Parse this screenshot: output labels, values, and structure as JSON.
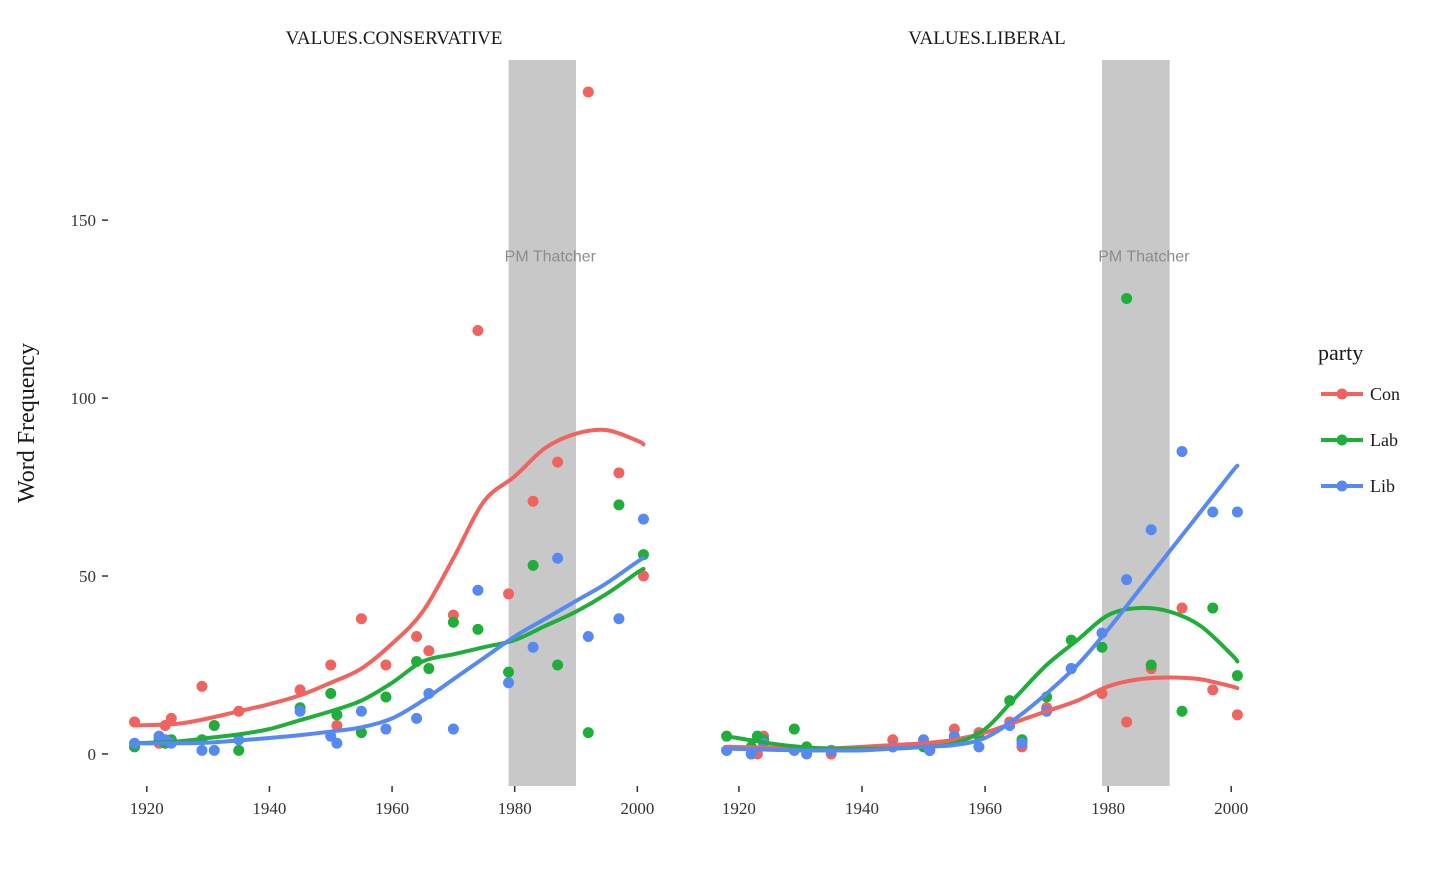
{
  "chart_data": {
    "type": "scatter",
    "ylabel": "Word Frequency",
    "xlim": [
      1914,
      2005
    ],
    "ylim": [
      -9,
      195
    ],
    "x_ticks": [
      1920,
      1940,
      1960,
      1980,
      2000
    ],
    "y_ticks": [
      0,
      50,
      100,
      150
    ],
    "grid": false,
    "legend": {
      "title": "party",
      "placement": "right"
    },
    "party_colors": {
      "Con": "#F0635E",
      "Lab": "#20AE3A",
      "Lib": "#5689F4"
    },
    "shaded_period": {
      "label": "PM Thatcher",
      "start": 1979,
      "end": 1990,
      "label_y": 140,
      "color": "#c8c8c8"
    },
    "panels": [
      {
        "title": "VALUES.CONSERVATIVE",
        "series": [
          {
            "name": "Con",
            "points": [
              [
                1918,
                9
              ],
              [
                1922,
                3
              ],
              [
                1923,
                8
              ],
              [
                1924,
                10
              ],
              [
                1929,
                19
              ],
              [
                1935,
                12
              ],
              [
                1945,
                18
              ],
              [
                1950,
                25
              ],
              [
                1951,
                8
              ],
              [
                1955,
                38
              ],
              [
                1959,
                25
              ],
              [
                1964,
                33
              ],
              [
                1966,
                29
              ],
              [
                1970,
                39
              ],
              [
                1974,
                119
              ],
              [
                1979,
                45
              ],
              [
                1983,
                71
              ],
              [
                1987,
                82
              ],
              [
                1992,
                186
              ],
              [
                1997,
                79
              ],
              [
                2001,
                50
              ]
            ],
            "smooth": [
              [
                1918,
                8
              ],
              [
                1925,
                8.5
              ],
              [
                1930,
                10
              ],
              [
                1935,
                12
              ],
              [
                1940,
                14
              ],
              [
                1945,
                16.5
              ],
              [
                1950,
                20
              ],
              [
                1955,
                24
              ],
              [
                1960,
                31
              ],
              [
                1965,
                40
              ],
              [
                1970,
                55
              ],
              [
                1975,
                71
              ],
              [
                1980,
                78
              ],
              [
                1985,
                86
              ],
              [
                1990,
                90
              ],
              [
                1995,
                91
              ],
              [
                2000,
                88
              ],
              [
                2001,
                87
              ]
            ]
          },
          {
            "name": "Lab",
            "points": [
              [
                1918,
                2
              ],
              [
                1922,
                4
              ],
              [
                1923,
                3
              ],
              [
                1924,
                4
              ],
              [
                1929,
                4
              ],
              [
                1931,
                8
              ],
              [
                1935,
                1
              ],
              [
                1945,
                13
              ],
              [
                1950,
                17
              ],
              [
                1951,
                11
              ],
              [
                1955,
                6
              ],
              [
                1959,
                16
              ],
              [
                1964,
                26
              ],
              [
                1966,
                24
              ],
              [
                1970,
                37
              ],
              [
                1974,
                35
              ],
              [
                1979,
                23
              ],
              [
                1983,
                53
              ],
              [
                1987,
                25
              ],
              [
                1992,
                6
              ],
              [
                1997,
                70
              ],
              [
                2001,
                56
              ]
            ],
            "smooth": [
              [
                1918,
                3
              ],
              [
                1925,
                3.5
              ],
              [
                1930,
                4.5
              ],
              [
                1935,
                5.5
              ],
              [
                1940,
                7
              ],
              [
                1945,
                9.5
              ],
              [
                1950,
                12
              ],
              [
                1955,
                15
              ],
              [
                1960,
                20
              ],
              [
                1965,
                26
              ],
              [
                1970,
                28
              ],
              [
                1975,
                30
              ],
              [
                1980,
                32
              ],
              [
                1985,
                36
              ],
              [
                1990,
                40
              ],
              [
                1995,
                45
              ],
              [
                2000,
                51
              ],
              [
                2001,
                52
              ]
            ]
          },
          {
            "name": "Lib",
            "points": [
              [
                1918,
                3
              ],
              [
                1922,
                5
              ],
              [
                1923,
                4
              ],
              [
                1924,
                3
              ],
              [
                1929,
                1
              ],
              [
                1931,
                1
              ],
              [
                1935,
                4
              ],
              [
                1945,
                12
              ],
              [
                1950,
                5
              ],
              [
                1951,
                3
              ],
              [
                1955,
                12
              ],
              [
                1959,
                7
              ],
              [
                1964,
                10
              ],
              [
                1966,
                17
              ],
              [
                1970,
                7
              ],
              [
                1974,
                46
              ],
              [
                1979,
                20
              ],
              [
                1983,
                30
              ],
              [
                1987,
                55
              ],
              [
                1992,
                33
              ],
              [
                1997,
                38
              ],
              [
                2001,
                66
              ]
            ],
            "smooth": [
              [
                1918,
                3
              ],
              [
                1925,
                3
              ],
              [
                1930,
                3.2
              ],
              [
                1935,
                3.8
              ],
              [
                1940,
                4.5
              ],
              [
                1945,
                5.3
              ],
              [
                1950,
                6.3
              ],
              [
                1955,
                7.5
              ],
              [
                1960,
                10
              ],
              [
                1965,
                15
              ],
              [
                1970,
                21
              ],
              [
                1975,
                27
              ],
              [
                1980,
                33
              ],
              [
                1985,
                38
              ],
              [
                1990,
                43
              ],
              [
                1995,
                48
              ],
              [
                2000,
                54
              ],
              [
                2001,
                55
              ]
            ]
          }
        ]
      },
      {
        "title": "VALUES.LIBERAL",
        "series": [
          {
            "name": "Con",
            "points": [
              [
                1918,
                1
              ],
              [
                1922,
                0
              ],
              [
                1923,
                0
              ],
              [
                1924,
                5
              ],
              [
                1929,
                1
              ],
              [
                1931,
                1
              ],
              [
                1935,
                0
              ],
              [
                1945,
                4
              ],
              [
                1950,
                3
              ],
              [
                1951,
                1
              ],
              [
                1955,
                7
              ],
              [
                1959,
                6
              ],
              [
                1964,
                9
              ],
              [
                1966,
                2
              ],
              [
                1970,
                13
              ],
              [
                1974,
                24
              ],
              [
                1979,
                17
              ],
              [
                1983,
                9
              ],
              [
                1987,
                24
              ],
              [
                1992,
                41
              ],
              [
                1997,
                18
              ],
              [
                2001,
                11
              ]
            ],
            "smooth": [
              [
                1918,
                2
              ],
              [
                1925,
                1.8
              ],
              [
                1930,
                1.6
              ],
              [
                1935,
                1.6
              ],
              [
                1940,
                2
              ],
              [
                1945,
                2.5
              ],
              [
                1950,
                3
              ],
              [
                1955,
                4
              ],
              [
                1960,
                6
              ],
              [
                1965,
                9
              ],
              [
                1970,
                12
              ],
              [
                1975,
                15
              ],
              [
                1980,
                19
              ],
              [
                1985,
                21
              ],
              [
                1990,
                21.5
              ],
              [
                1995,
                21
              ],
              [
                2000,
                19
              ],
              [
                2001,
                18.5
              ]
            ]
          },
          {
            "name": "Lab",
            "points": [
              [
                1918,
                5
              ],
              [
                1922,
                2
              ],
              [
                1923,
                5
              ],
              [
                1924,
                4
              ],
              [
                1929,
                7
              ],
              [
                1931,
                2
              ],
              [
                1935,
                1
              ],
              [
                1945,
                2
              ],
              [
                1950,
                2
              ],
              [
                1951,
                1
              ],
              [
                1955,
                4
              ],
              [
                1959,
                5
              ],
              [
                1964,
                15
              ],
              [
                1966,
                4
              ],
              [
                1970,
                16
              ],
              [
                1974,
                32
              ],
              [
                1979,
                30
              ],
              [
                1983,
                128
              ],
              [
                1987,
                25
              ],
              [
                1992,
                12
              ],
              [
                1997,
                41
              ],
              [
                2001,
                22
              ]
            ],
            "smooth": [
              [
                1918,
                5
              ],
              [
                1925,
                3
              ],
              [
                1930,
                2
              ],
              [
                1935,
                1.5
              ],
              [
                1940,
                1.5
              ],
              [
                1945,
                1.5
              ],
              [
                1950,
                2
              ],
              [
                1955,
                3
              ],
              [
                1960,
                7
              ],
              [
                1965,
                16
              ],
              [
                1970,
                25
              ],
              [
                1975,
                32
              ],
              [
                1980,
                39
              ],
              [
                1985,
                41
              ],
              [
                1990,
                40
              ],
              [
                1995,
                36
              ],
              [
                2000,
                28
              ],
              [
                2001,
                26
              ]
            ]
          },
          {
            "name": "Lib",
            "points": [
              [
                1918,
                1
              ],
              [
                1922,
                0
              ],
              [
                1924,
                3
              ],
              [
                1929,
                1
              ],
              [
                1931,
                0
              ],
              [
                1935,
                1
              ],
              [
                1945,
                2
              ],
              [
                1950,
                4
              ],
              [
                1951,
                1
              ],
              [
                1955,
                5
              ],
              [
                1959,
                2
              ],
              [
                1964,
                8
              ],
              [
                1966,
                3
              ],
              [
                1970,
                12
              ],
              [
                1974,
                24
              ],
              [
                1979,
                34
              ],
              [
                1983,
                49
              ],
              [
                1987,
                63
              ],
              [
                1992,
                85
              ],
              [
                1997,
                68
              ],
              [
                2001,
                68
              ]
            ],
            "smooth": [
              [
                1918,
                1.5
              ],
              [
                1925,
                1.2
              ],
              [
                1930,
                1
              ],
              [
                1935,
                1
              ],
              [
                1940,
                1
              ],
              [
                1945,
                1.5
              ],
              [
                1950,
                2
              ],
              [
                1955,
                2.5
              ],
              [
                1960,
                4.5
              ],
              [
                1965,
                10
              ],
              [
                1970,
                17
              ],
              [
                1975,
                25
              ],
              [
                1980,
                35
              ],
              [
                1985,
                46
              ],
              [
                1990,
                57
              ],
              [
                1995,
                68
              ],
              [
                2000,
                79
              ],
              [
                2001,
                81
              ]
            ]
          }
        ]
      }
    ]
  }
}
